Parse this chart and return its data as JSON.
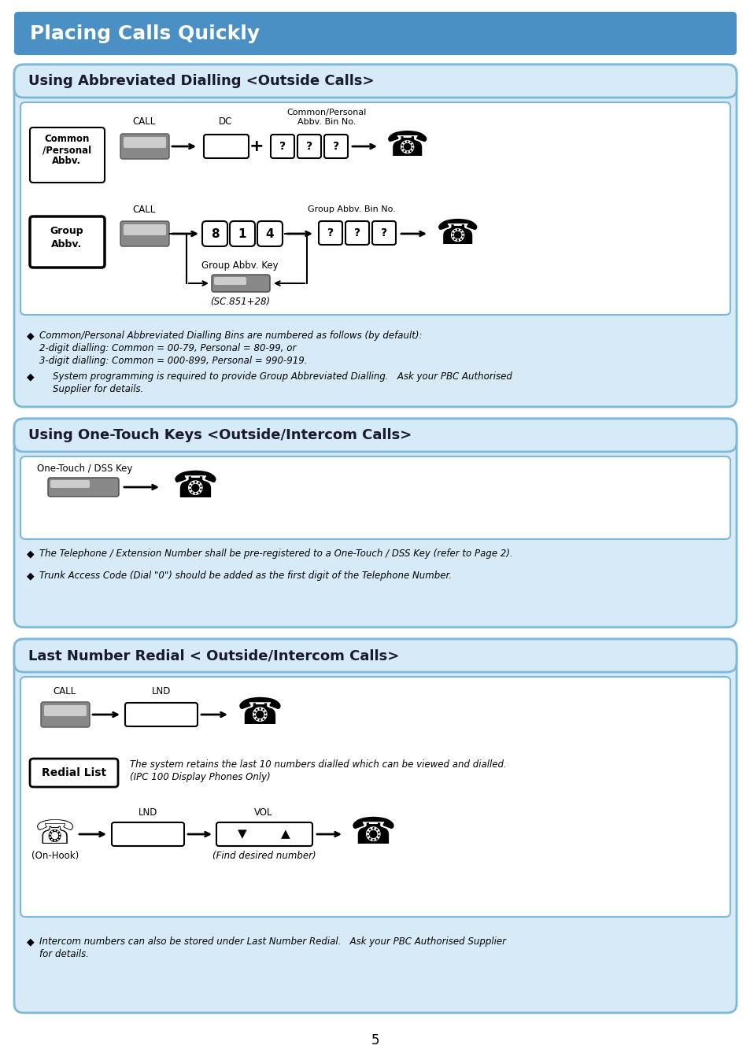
{
  "page_bg": "#ffffff",
  "header_bg": "#4a90c4",
  "header_text": "Placing Calls Quickly",
  "header_text_color": "#ffffff",
  "section_bg": "#d6eaf8",
  "section_border": "#7eb8d9",
  "section1_title": "Using Abbreviated Dialling <Outside Calls>",
  "section2_title": "Using One-Touch Keys <Outside/Intercom Calls>",
  "section3_title": "Last Number Redial < Outside/Intercom Calls>",
  "title_text_color": "#1a1a2e",
  "page_number": "5",
  "abbrev_bullet1_line1": "Common/Personal Abbreviated Dialling Bins are numbered as follows (by default):",
  "abbrev_bullet1_line2": "2-digit dialling: Common = 00-79, Personal = 80-99, or",
  "abbrev_bullet1_line3": "3-digit dialling: Common = 000-899, Personal = 990-919.",
  "abbrev_bullet2_line1": "System programming is required to provide Group Abbreviated Dialling.   Ask your PBC Authorised",
  "abbrev_bullet2_line2": "Supplier for details.",
  "onetouch_bullet1": "The Telephone / Extension Number shall be pre-registered to a One-Touch / DSS Key (refer to Page 2).",
  "onetouch_bullet2": "Trunk Access Code (Dial \"0\") should be added as the first digit of the Telephone Number.",
  "lnr_bullet1_line1": "Intercom numbers can also be stored under Last Number Redial.   Ask your PBC Authorised Supplier",
  "lnr_bullet1_line2": "for details.",
  "group_digits": [
    "8",
    "1",
    "4"
  ],
  "redial_text_line1": "The system retains the last 10 numbers dialled which can be viewed and dialled.",
  "redial_text_line2": "(IPC 100 Display Phones Only)"
}
